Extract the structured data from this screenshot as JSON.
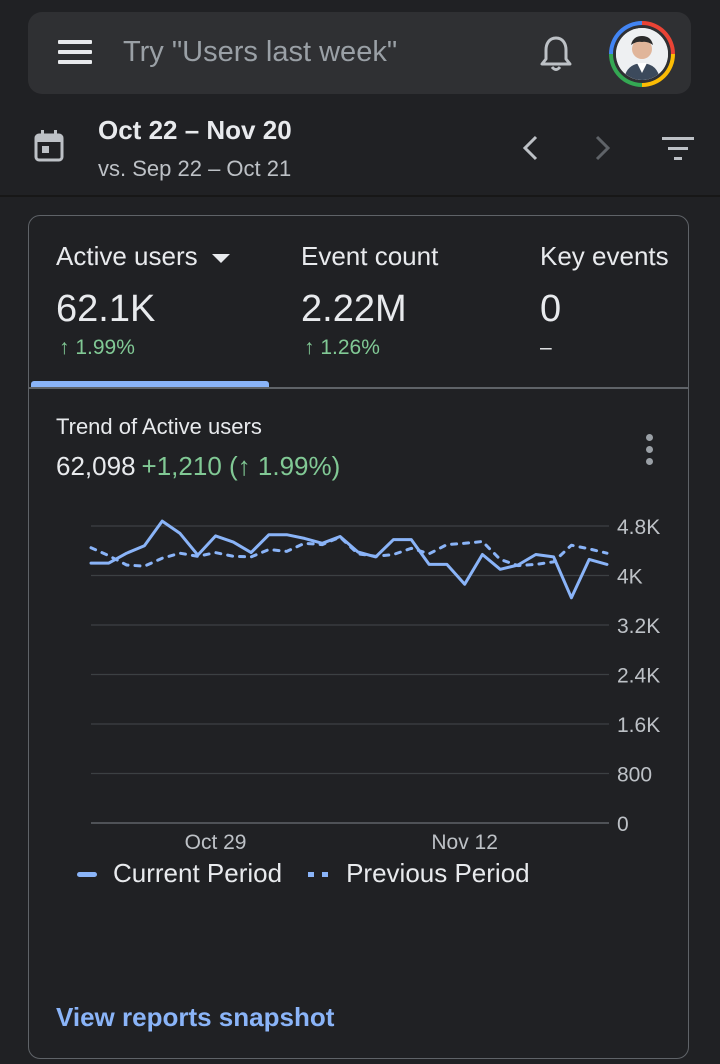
{
  "header": {
    "search_placeholder": "Try \"Users last week\"",
    "icons": [
      "menu-icon",
      "bell-icon",
      "avatar"
    ]
  },
  "date": {
    "range": "Oct 22 – Nov 20",
    "compare": "vs. Sep 22 – Oct 21"
  },
  "metrics": [
    {
      "label": "Active users",
      "value": "62.1K",
      "delta": "↑ 1.99%",
      "selected": true
    },
    {
      "label": "Event count",
      "value": "2.22M",
      "delta": "↑ 1.26%",
      "selected": false
    },
    {
      "label": "Key events",
      "value": "0",
      "delta": "–",
      "selected": false
    }
  ],
  "trend": {
    "title": "Trend of Active users",
    "total": "62,098",
    "change": "+1,210 (↑ 1.99%)"
  },
  "legend": {
    "current": "Current Period",
    "previous": "Previous Period"
  },
  "link": {
    "snapshot": "View reports snapshot"
  },
  "colors": {
    "accent": "#8ab4f8",
    "positive": "#81c995",
    "background": "#202124",
    "surface": "#2f3033"
  },
  "chart_data": {
    "type": "line",
    "title": "Trend of Active users",
    "x_ticks": [
      "Oct 29",
      "Nov 12"
    ],
    "x_tick_indices": [
      7,
      21
    ],
    "y_ticks": [
      "0",
      "800",
      "1.6K",
      "2.4K",
      "3.2K",
      "4K",
      "4.8K"
    ],
    "ylim": [
      0,
      4800
    ],
    "grid": true,
    "legend_position": "bottom",
    "series": [
      {
        "name": "Current Period",
        "style": "solid",
        "values": [
          4200,
          4200,
          4360,
          4480,
          4880,
          4680,
          4330,
          4640,
          4540,
          4370,
          4660,
          4660,
          4600,
          4520,
          4630,
          4380,
          4300,
          4580,
          4580,
          4180,
          4180,
          3860,
          4340,
          4100,
          4170,
          4340,
          4300,
          3640,
          4260,
          4180
        ]
      },
      {
        "name": "Previous Period",
        "style": "dashed",
        "values": [
          4450,
          4320,
          4170,
          4150,
          4280,
          4360,
          4310,
          4370,
          4310,
          4300,
          4420,
          4390,
          4520,
          4500,
          4620,
          4350,
          4310,
          4340,
          4440,
          4350,
          4500,
          4520,
          4550,
          4260,
          4160,
          4180,
          4220,
          4490,
          4430,
          4360
        ]
      }
    ]
  }
}
